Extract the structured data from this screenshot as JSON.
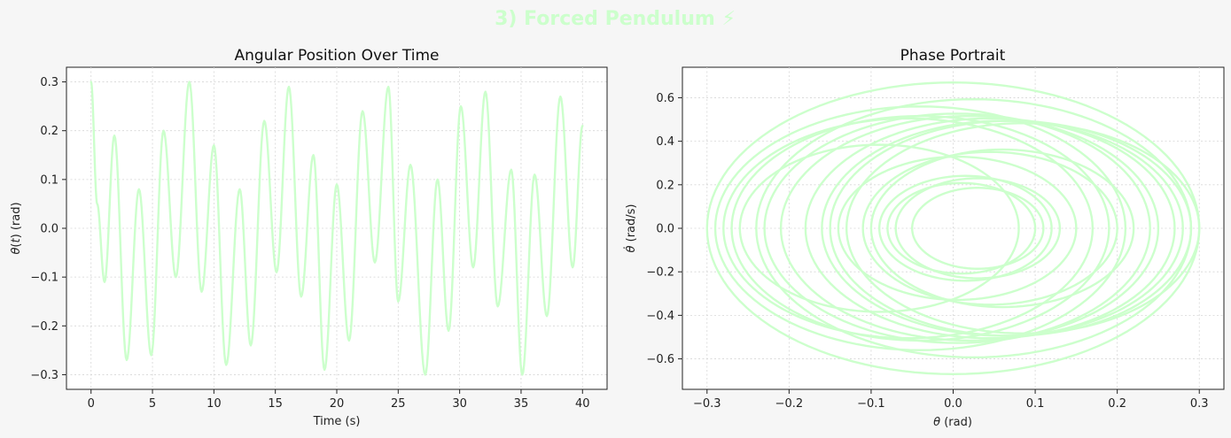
{
  "figure": {
    "title": "3) Forced Pendulum ⚡",
    "title_color": "#ccffcc",
    "background": "#f6f6f6",
    "line_color": "#ccffcc"
  },
  "chart_data": [
    {
      "type": "line",
      "title": "Angular Position Over Time",
      "xlabel": "Time (s)",
      "ylabel_parts": [
        "θ",
        "(",
        "t",
        ") (rad)"
      ],
      "xlim": [
        -2,
        42
      ],
      "ylim": [
        -0.33,
        0.33
      ],
      "xticks": [
        0,
        5,
        10,
        15,
        20,
        25,
        30,
        35,
        40
      ],
      "yticks": [
        -0.3,
        -0.2,
        -0.1,
        0.0,
        0.1,
        0.2,
        0.3
      ],
      "xtick_labels": [
        "0",
        "5",
        "10",
        "15",
        "20",
        "25",
        "30",
        "35",
        "40"
      ],
      "ytick_labels": [
        "−0.3",
        "−0.2",
        "−0.1",
        "0.0",
        "0.1",
        "0.2",
        "0.3"
      ],
      "grid": true,
      "series": [
        {
          "x": [
            0,
            0.5,
            1.1,
            1.9,
            2.9,
            3.9,
            4.9,
            5.9,
            6.9,
            8.0,
            9.0,
            10.0,
            11.0,
            12.1,
            13.0,
            14.1,
            15.1,
            16.1,
            17.1,
            18.1,
            19.0,
            20.0,
            21.0,
            22.1,
            23.1,
            24.2,
            25.0,
            26.0,
            27.2,
            28.2,
            29.1,
            30.1,
            31.1,
            32.1,
            33.1,
            34.2,
            35.1,
            36.1,
            37.1,
            38.2,
            39.2,
            40.0
          ],
          "y": [
            0.3,
            0.05,
            -0.11,
            0.19,
            -0.27,
            0.08,
            -0.26,
            0.2,
            -0.1,
            0.3,
            -0.13,
            0.17,
            -0.28,
            0.08,
            -0.24,
            0.22,
            -0.09,
            0.29,
            -0.14,
            0.15,
            -0.29,
            0.09,
            -0.23,
            0.24,
            -0.07,
            0.29,
            -0.15,
            0.13,
            -0.3,
            0.1,
            -0.21,
            0.25,
            -0.08,
            0.28,
            -0.16,
            0.12,
            -0.3,
            0.11,
            -0.18,
            0.27,
            -0.08,
            0.21
          ]
        }
      ]
    },
    {
      "type": "line",
      "title": "Phase Portrait",
      "xlabel_parts": [
        "θ",
        " (rad)"
      ],
      "ylabel_parts": [
        "θ̇",
        " (rad/s)"
      ],
      "xlim": [
        -0.33,
        0.33
      ],
      "ylim": [
        -0.74,
        0.74
      ],
      "xticks": [
        -0.3,
        -0.2,
        -0.1,
        0.0,
        0.1,
        0.2,
        0.3
      ],
      "yticks": [
        -0.6,
        -0.4,
        -0.2,
        0.0,
        0.2,
        0.4,
        0.6
      ],
      "xtick_labels": [
        "−0.3",
        "−0.2",
        "−0.1",
        "0.0",
        "0.1",
        "0.2",
        "0.3"
      ],
      "ytick_labels": [
        "−0.6",
        "−0.4",
        "−0.2",
        "0.0",
        "0.2",
        "0.4",
        "0.6"
      ],
      "grid": true,
      "loops": [
        {
          "x_min": -0.3,
          "x_max": 0.3
        },
        {
          "x_min": -0.29,
          "x_max": 0.21
        },
        {
          "x_min": -0.28,
          "x_max": 0.17
        },
        {
          "x_min": -0.27,
          "x_max": 0.19
        },
        {
          "x_min": -0.26,
          "x_max": 0.08
        },
        {
          "x_min": -0.24,
          "x_max": 0.29
        },
        {
          "x_min": -0.23,
          "x_max": 0.24
        },
        {
          "x_min": -0.21,
          "x_max": 0.25
        },
        {
          "x_min": -0.18,
          "x_max": 0.27
        },
        {
          "x_min": -0.16,
          "x_max": 0.28
        },
        {
          "x_min": -0.15,
          "x_max": 0.29
        },
        {
          "x_min": -0.14,
          "x_max": 0.15
        },
        {
          "x_min": -0.13,
          "x_max": 0.3
        },
        {
          "x_min": -0.11,
          "x_max": 0.2
        },
        {
          "x_min": -0.1,
          "x_max": 0.22
        },
        {
          "x_min": -0.09,
          "x_max": 0.12
        },
        {
          "x_min": -0.08,
          "x_max": 0.1
        },
        {
          "x_min": -0.07,
          "x_max": 0.13
        },
        {
          "x_min": -0.05,
          "x_max": 0.11
        }
      ]
    }
  ]
}
